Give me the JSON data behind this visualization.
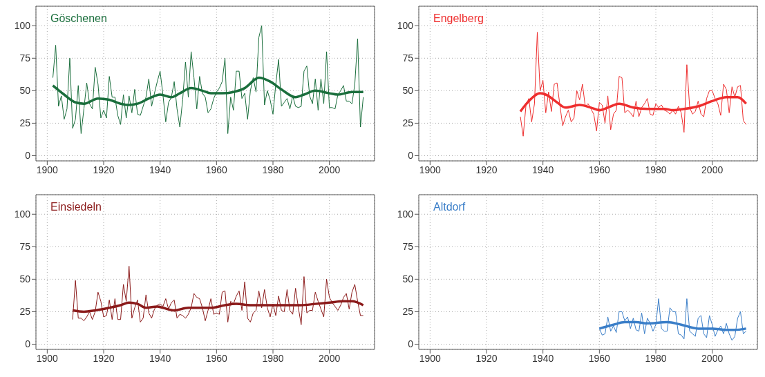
{
  "chart_data": [
    {
      "type": "line",
      "title": "Göschenen",
      "xlim": [
        1896,
        2016
      ],
      "xticks": [
        1900,
        1920,
        1940,
        1960,
        1980,
        2000
      ],
      "ylim": [
        -4,
        115
      ],
      "yticks": [
        0,
        25,
        50,
        75,
        100
      ],
      "grid": true,
      "series": [
        {
          "color": "#1a6e3c",
          "x": [
            1902,
            1903,
            1904,
            1905,
            1906,
            1907,
            1908,
            1909,
            1910,
            1911,
            1912,
            1913,
            1914,
            1915,
            1916,
            1917,
            1918,
            1919,
            1920,
            1921,
            1922,
            1923,
            1924,
            1925,
            1926,
            1927,
            1928,
            1929,
            1930,
            1931,
            1932,
            1933,
            1934,
            1935,
            1936,
            1937,
            1938,
            1939,
            1940,
            1941,
            1942,
            1943,
            1944,
            1945,
            1946,
            1947,
            1948,
            1949,
            1950,
            1951,
            1952,
            1953,
            1954,
            1955,
            1956,
            1957,
            1958,
            1959,
            1960,
            1961,
            1962,
            1963,
            1964,
            1965,
            1966,
            1967,
            1968,
            1969,
            1970,
            1971,
            1972,
            1973,
            1974,
            1975,
            1976,
            1977,
            1978,
            1979,
            1980,
            1981,
            1982,
            1983,
            1984,
            1985,
            1986,
            1987,
            1988,
            1989,
            1990,
            1991,
            1992,
            1993,
            1994,
            1995,
            1996,
            1997,
            1998,
            1999,
            2000,
            2001,
            2002,
            2003,
            2004,
            2005,
            2006,
            2007,
            2008,
            2009,
            2010,
            2011,
            2012
          ],
          "values": [
            60,
            85,
            38,
            46,
            28,
            36,
            75,
            21,
            28,
            54,
            17,
            36,
            56,
            40,
            36,
            68,
            55,
            29,
            35,
            29,
            61,
            45,
            45,
            31,
            24,
            47,
            29,
            46,
            33,
            51,
            32,
            31,
            38,
            45,
            59,
            38,
            48,
            57,
            65,
            47,
            26,
            41,
            45,
            57,
            36,
            22,
            43,
            72,
            45,
            80,
            60,
            36,
            61,
            48,
            45,
            33,
            36,
            44,
            49,
            52,
            57,
            75,
            17,
            45,
            35,
            65,
            65,
            44,
            48,
            28,
            50,
            60,
            49,
            91,
            100,
            39,
            50,
            43,
            32,
            55,
            74,
            38,
            41,
            44,
            36,
            46,
            38,
            37,
            38,
            65,
            69,
            46,
            40,
            59,
            35,
            59,
            40,
            80,
            37,
            37,
            36,
            47,
            50,
            54,
            42,
            42,
            40,
            55,
            90,
            22,
            45
          ]
        },
        {
          "type": "line",
          "color": "#1a6e3c",
          "x": [
            1902,
            1906,
            1910,
            1913,
            1918,
            1922,
            1926,
            1929,
            1932,
            1936,
            1940,
            1944,
            1947,
            1951,
            1955,
            1958,
            1962,
            1966,
            1970,
            1975,
            1979,
            1983,
            1988,
            1991,
            1995,
            2000,
            2003,
            2008,
            2012
          ],
          "values": [
            54,
            47,
            41,
            40,
            44,
            43,
            40,
            39,
            40,
            44,
            47,
            45,
            48,
            52,
            50,
            48,
            48,
            49,
            52,
            60,
            57,
            51,
            45,
            47,
            50,
            48,
            47,
            49,
            49
          ]
        }
      ]
    },
    {
      "type": "line",
      "title": "Engelberg",
      "xlim": [
        1896,
        2016
      ],
      "xticks": [
        1900,
        1920,
        1940,
        1960,
        1980,
        2000
      ],
      "ylim": [
        -4,
        115
      ],
      "yticks": [
        0,
        25,
        50,
        75,
        100
      ],
      "grid": true,
      "series": [
        {
          "color": "#ee2e2e",
          "x": [
            1932,
            1933,
            1934,
            1935,
            1936,
            1937,
            1938,
            1939,
            1940,
            1941,
            1942,
            1943,
            1944,
            1945,
            1946,
            1947,
            1948,
            1949,
            1950,
            1951,
            1952,
            1953,
            1954,
            1955,
            1956,
            1957,
            1958,
            1959,
            1960,
            1961,
            1962,
            1963,
            1964,
            1965,
            1966,
            1967,
            1968,
            1969,
            1970,
            1971,
            1972,
            1973,
            1974,
            1975,
            1976,
            1977,
            1978,
            1979,
            1980,
            1981,
            1982,
            1983,
            1984,
            1985,
            1986,
            1987,
            1988,
            1989,
            1990,
            1991,
            1992,
            1993,
            1994,
            1995,
            1996,
            1997,
            1998,
            1999,
            2000,
            2001,
            2002,
            2003,
            2004,
            2005,
            2006,
            2007,
            2008,
            2009,
            2010,
            2011,
            2012
          ],
          "values": [
            30,
            15,
            39,
            44,
            26,
            40,
            95,
            50,
            58,
            33,
            49,
            34,
            55,
            56,
            39,
            23,
            30,
            35,
            26,
            29,
            50,
            43,
            55,
            38,
            40,
            36,
            32,
            19,
            41,
            39,
            25,
            46,
            20,
            32,
            35,
            61,
            60,
            33,
            35,
            33,
            30,
            42,
            30,
            37,
            40,
            44,
            32,
            31,
            40,
            37,
            39,
            35,
            34,
            32,
            35,
            32,
            38,
            33,
            18,
            70,
            37,
            32,
            34,
            42,
            32,
            30,
            44,
            50,
            50,
            44,
            40,
            31,
            55,
            51,
            33,
            53,
            45,
            53,
            54,
            27,
            24
          ]
        },
        {
          "type": "line",
          "color": "#ee2e2e",
          "x": [
            1932,
            1935,
            1939,
            1941,
            1945,
            1948,
            1953,
            1957,
            1960,
            1963,
            1967,
            1972,
            1977,
            1983,
            1986,
            1990,
            1995,
            2000,
            2005,
            2009,
            2012
          ],
          "values": [
            34,
            42,
            48,
            47,
            41,
            37,
            39,
            37,
            35,
            37,
            40,
            37,
            36,
            36,
            35,
            36,
            38,
            42,
            45,
            45,
            40
          ]
        }
      ]
    },
    {
      "type": "line",
      "title": "Einsiedeln",
      "xlim": [
        1896,
        2016
      ],
      "xticks": [
        1900,
        1920,
        1940,
        1960,
        1980,
        2000
      ],
      "ylim": [
        -4,
        115
      ],
      "yticks": [
        0,
        25,
        50,
        75,
        100
      ],
      "grid": true,
      "series": [
        {
          "color": "#8b1a1a",
          "x": [
            1909,
            1910,
            1911,
            1912,
            1913,
            1914,
            1915,
            1916,
            1917,
            1918,
            1919,
            1920,
            1921,
            1922,
            1923,
            1924,
            1925,
            1926,
            1927,
            1928,
            1929,
            1930,
            1931,
            1932,
            1933,
            1934,
            1935,
            1936,
            1937,
            1938,
            1939,
            1940,
            1941,
            1942,
            1943,
            1944,
            1945,
            1946,
            1947,
            1948,
            1949,
            1950,
            1951,
            1952,
            1953,
            1954,
            1955,
            1956,
            1957,
            1958,
            1959,
            1960,
            1961,
            1962,
            1963,
            1964,
            1965,
            1966,
            1967,
            1968,
            1969,
            1970,
            1971,
            1972,
            1973,
            1974,
            1975,
            1976,
            1977,
            1978,
            1979,
            1980,
            1981,
            1982,
            1983,
            1984,
            1985,
            1986,
            1987,
            1988,
            1989,
            1990,
            1991,
            1992,
            1993,
            1994,
            1995,
            1996,
            1997,
            1998,
            1999,
            2000,
            2001,
            2002,
            2003,
            2004,
            2005,
            2006,
            2007,
            2008,
            2009,
            2010,
            2011,
            2012
          ],
          "values": [
            19,
            49,
            20,
            20,
            18,
            21,
            25,
            19,
            25,
            40,
            33,
            21,
            22,
            34,
            19,
            35,
            19,
            19,
            46,
            33,
            60,
            20,
            28,
            34,
            17,
            20,
            38,
            24,
            20,
            27,
            30,
            31,
            29,
            35,
            27,
            32,
            34,
            20,
            23,
            22,
            20,
            23,
            28,
            39,
            36,
            35,
            28,
            18,
            26,
            35,
            23,
            24,
            23,
            40,
            41,
            17,
            33,
            31,
            37,
            41,
            26,
            48,
            20,
            17,
            24,
            26,
            41,
            28,
            42,
            28,
            21,
            31,
            22,
            37,
            26,
            25,
            42,
            26,
            23,
            43,
            28,
            15,
            52,
            24,
            26,
            26,
            40,
            33,
            27,
            21,
            50,
            36,
            32,
            29,
            26,
            30,
            36,
            39,
            27,
            40,
            46,
            33,
            22,
            22
          ]
        },
        {
          "type": "line",
          "color": "#8b1a1a",
          "x": [
            1909,
            1913,
            1917,
            1922,
            1926,
            1929,
            1932,
            1935,
            1939,
            1941,
            1945,
            1950,
            1954,
            1958,
            1963,
            1967,
            1972,
            1980,
            1990,
            1995,
            2000,
            2005,
            2008,
            2012
          ],
          "values": [
            26,
            25,
            26,
            28,
            30,
            32,
            31,
            28,
            29,
            28,
            26,
            28,
            28,
            28,
            30,
            31,
            30,
            30,
            30,
            31,
            32,
            33,
            33,
            30
          ]
        }
      ]
    },
    {
      "type": "line",
      "title": "Altdorf",
      "xlim": [
        1896,
        2016
      ],
      "xticks": [
        1900,
        1920,
        1940,
        1960,
        1980,
        2000
      ],
      "ylim": [
        -4,
        115
      ],
      "yticks": [
        0,
        25,
        50,
        75,
        100
      ],
      "grid": true,
      "series": [
        {
          "color": "#3a7ec8",
          "x": [
            1960,
            1961,
            1962,
            1963,
            1964,
            1965,
            1966,
            1967,
            1968,
            1969,
            1970,
            1971,
            1972,
            1973,
            1974,
            1975,
            1976,
            1977,
            1978,
            1979,
            1980,
            1981,
            1982,
            1983,
            1984,
            1985,
            1986,
            1987,
            1988,
            1989,
            1990,
            1991,
            1992,
            1993,
            1994,
            1995,
            1996,
            1997,
            1998,
            1999,
            2000,
            2001,
            2002,
            2003,
            2004,
            2005,
            2006,
            2007,
            2008,
            2009,
            2010,
            2011,
            2012
          ],
          "values": [
            12,
            7,
            8,
            21,
            10,
            14,
            9,
            25,
            25,
            18,
            21,
            12,
            20,
            11,
            10,
            24,
            8,
            20,
            16,
            10,
            15,
            35,
            12,
            10,
            10,
            28,
            25,
            25,
            8,
            7,
            4,
            35,
            10,
            8,
            6,
            20,
            22,
            8,
            5,
            22,
            15,
            6,
            11,
            14,
            8,
            16,
            8,
            3,
            6,
            20,
            25,
            8,
            10
          ]
        },
        {
          "type": "line",
          "color": "#3a7ec8",
          "x": [
            1960,
            1965,
            1969,
            1973,
            1977,
            1984,
            1989,
            1995,
            2000,
            2005,
            2008,
            2012
          ],
          "values": [
            12,
            15,
            17,
            17,
            16,
            17,
            15,
            12,
            12,
            11,
            11,
            12
          ]
        }
      ]
    }
  ]
}
